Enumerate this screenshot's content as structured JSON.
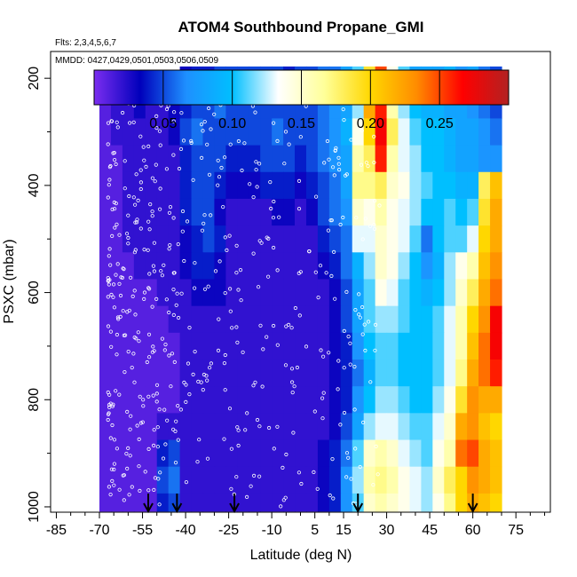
{
  "chart_data": {
    "type": "heatmap",
    "title": "ATOM4 Southbound Propane_GMI",
    "subtitle_flights": "Flts: 2,3,4,5,6,7",
    "subtitle_dates": "MMDD: 0427,0429,0501,0503,0506,0509",
    "xlabel": "Latitude (deg N)",
    "ylabel": "PSXC (mbar)",
    "x_ticks": [
      -85,
      -70,
      -55,
      -40,
      -25,
      -10,
      5,
      15,
      30,
      45,
      60,
      75
    ],
    "x_tick_labels": [
      "-85",
      "-70",
      "-55",
      "-40",
      "-25",
      "-10",
      "5",
      "15",
      "30",
      "45",
      "60",
      "75"
    ],
    "xlim": [
      -87,
      87
    ],
    "y_ticks": [
      200,
      400,
      600,
      800,
      1000
    ],
    "y_tick_labels": [
      "200",
      "400",
      "600",
      "800",
      "1000"
    ],
    "ylim": [
      1010,
      150
    ],
    "colorbar": {
      "range": [
        0,
        0.3
      ],
      "ticks": [
        0.05,
        0.1,
        0.15,
        0.2,
        0.25
      ],
      "tick_labels": [
        "0.05",
        "0.10",
        "0.15",
        "0.20",
        "0.25"
      ],
      "colors": [
        "#7b2df0",
        "#0000bb",
        "#1e90ff",
        "#00bfff",
        "#ffffff",
        "#ffff99",
        "#ffd700",
        "#ff8c00",
        "#ff0000",
        "#b22222"
      ]
    },
    "flight_profile_latitudes": [
      -53,
      -43,
      -23,
      20,
      60
    ],
    "lat_grid": [
      -68,
      -64,
      -60,
      -56,
      -52,
      -48,
      -44,
      -40,
      -36,
      -32,
      -28,
      -24,
      -20,
      -16,
      -12,
      -8,
      -4,
      0,
      4,
      8,
      12,
      16,
      20,
      24,
      28,
      32,
      36,
      40,
      44,
      48,
      52,
      56,
      60,
      64,
      68
    ],
    "pressure_levels": [
      200,
      250,
      300,
      350,
      400,
      450,
      500,
      550,
      600,
      650,
      700,
      750,
      800,
      850,
      900,
      950,
      1000
    ],
    "values": [
      [
        0.01,
        0.01,
        0.02,
        0.03,
        0.02,
        0.02,
        0.02,
        0.03,
        0.04,
        0.04,
        0.05,
        0.05,
        0.05,
        0.05,
        0.05,
        0.05,
        0.04,
        0.05,
        0.05,
        0.06,
        0.06,
        0.08,
        0.11,
        0.19,
        0.25,
        0.14,
        0.11,
        0.08,
        0.08,
        0.08,
        0.09,
        0.07,
        0.08,
        0.06,
        0.05
      ],
      [
        0.01,
        0.02,
        0.02,
        0.03,
        0.02,
        0.02,
        0.03,
        0.04,
        0.05,
        0.05,
        0.06,
        0.05,
        0.05,
        0.05,
        0.05,
        0.05,
        0.05,
        0.05,
        0.05,
        0.06,
        0.07,
        0.08,
        0.12,
        0.22,
        0.26,
        0.16,
        0.12,
        0.1,
        0.09,
        0.09,
        0.08,
        0.08,
        0.07,
        0.06,
        0.05
      ],
      [
        0.01,
        0.02,
        0.02,
        0.02,
        0.02,
        0.02,
        0.03,
        0.05,
        0.06,
        0.05,
        0.05,
        0.05,
        0.05,
        0.05,
        0.05,
        0.06,
        0.05,
        0.05,
        0.05,
        0.06,
        0.07,
        0.09,
        0.14,
        0.2,
        0.27,
        0.18,
        0.13,
        0.11,
        0.1,
        0.1,
        0.09,
        0.08,
        0.08,
        0.07,
        0.06
      ],
      [
        0.01,
        0.01,
        0.02,
        0.02,
        0.02,
        0.02,
        0.02,
        0.04,
        0.05,
        0.05,
        0.05,
        0.04,
        0.04,
        0.04,
        0.05,
        0.05,
        0.05,
        0.04,
        0.05,
        0.06,
        0.07,
        0.08,
        0.16,
        0.18,
        0.26,
        0.16,
        0.13,
        0.12,
        0.1,
        0.1,
        0.09,
        0.08,
        0.08,
        0.07,
        0.07
      ],
      [
        0.01,
        0.01,
        0.02,
        0.02,
        0.02,
        0.02,
        0.02,
        0.04,
        0.05,
        0.05,
        0.04,
        0.03,
        0.03,
        0.03,
        0.04,
        0.04,
        0.04,
        0.03,
        0.04,
        0.05,
        0.06,
        0.08,
        0.17,
        0.17,
        0.18,
        0.15,
        0.14,
        0.12,
        0.11,
        0.1,
        0.1,
        0.09,
        0.09,
        0.18,
        0.21
      ],
      [
        0.01,
        0.01,
        0.02,
        0.02,
        0.02,
        0.02,
        0.02,
        0.04,
        0.05,
        0.05,
        0.03,
        0.02,
        0.02,
        0.02,
        0.02,
        0.03,
        0.03,
        0.02,
        0.03,
        0.05,
        0.06,
        0.07,
        0.15,
        0.14,
        0.16,
        0.14,
        0.13,
        0.12,
        0.1,
        0.1,
        0.11,
        0.1,
        0.11,
        0.19,
        0.22
      ],
      [
        0.01,
        0.01,
        0.02,
        0.02,
        0.02,
        0.02,
        0.02,
        0.03,
        0.04,
        0.05,
        0.04,
        0.02,
        0.02,
        0.02,
        0.02,
        0.02,
        0.02,
        0.02,
        0.02,
        0.04,
        0.05,
        0.06,
        0.13,
        0.13,
        0.15,
        0.14,
        0.13,
        0.11,
        0.06,
        0.1,
        0.11,
        0.11,
        0.13,
        0.2,
        0.22
      ],
      [
        0.01,
        0.01,
        0.01,
        0.02,
        0.02,
        0.02,
        0.02,
        0.03,
        0.04,
        0.04,
        0.03,
        0.02,
        0.02,
        0.02,
        0.02,
        0.02,
        0.02,
        0.02,
        0.02,
        0.03,
        0.04,
        0.06,
        0.09,
        0.12,
        0.15,
        0.14,
        0.12,
        0.1,
        0.07,
        0.09,
        0.12,
        0.14,
        0.16,
        0.21,
        0.23
      ],
      [
        0.01,
        0.01,
        0.01,
        0.01,
        0.01,
        0.02,
        0.02,
        0.02,
        0.03,
        0.03,
        0.03,
        0.02,
        0.02,
        0.02,
        0.02,
        0.02,
        0.02,
        0.02,
        0.02,
        0.02,
        0.03,
        0.05,
        0.08,
        0.11,
        0.14,
        0.13,
        0.11,
        0.1,
        0.09,
        0.1,
        0.12,
        0.15,
        0.18,
        0.22,
        0.24
      ],
      [
        0.01,
        0.01,
        0.01,
        0.01,
        0.01,
        0.01,
        0.02,
        0.02,
        0.02,
        0.02,
        0.02,
        0.02,
        0.02,
        0.02,
        0.02,
        0.02,
        0.02,
        0.02,
        0.02,
        0.02,
        0.03,
        0.05,
        0.08,
        0.11,
        0.12,
        0.12,
        0.11,
        0.1,
        0.1,
        0.11,
        0.13,
        0.16,
        0.2,
        0.23,
        0.27
      ],
      [
        0.01,
        0.01,
        0.01,
        0.01,
        0.01,
        0.01,
        0.01,
        0.02,
        0.02,
        0.02,
        0.02,
        0.02,
        0.02,
        0.02,
        0.02,
        0.02,
        0.02,
        0.02,
        0.02,
        0.02,
        0.03,
        0.04,
        0.07,
        0.1,
        0.11,
        0.11,
        0.1,
        0.1,
        0.1,
        0.11,
        0.13,
        0.16,
        0.21,
        0.24,
        0.27
      ],
      [
        0.01,
        0.01,
        0.01,
        0.01,
        0.01,
        0.01,
        0.01,
        0.02,
        0.02,
        0.02,
        0.02,
        0.02,
        0.02,
        0.02,
        0.02,
        0.02,
        0.02,
        0.02,
        0.02,
        0.02,
        0.03,
        0.04,
        0.06,
        0.09,
        0.11,
        0.11,
        0.1,
        0.1,
        0.1,
        0.11,
        0.13,
        0.17,
        0.22,
        0.24,
        0.26
      ],
      [
        0.01,
        0.01,
        0.01,
        0.01,
        0.01,
        0.01,
        0.01,
        0.02,
        0.02,
        0.02,
        0.02,
        0.02,
        0.02,
        0.02,
        0.02,
        0.02,
        0.02,
        0.02,
        0.02,
        0.02,
        0.03,
        0.04,
        0.07,
        0.1,
        0.12,
        0.12,
        0.11,
        0.1,
        0.1,
        0.12,
        0.14,
        0.19,
        0.23,
        0.22,
        0.22
      ],
      [
        0.01,
        0.01,
        0.01,
        0.01,
        0.01,
        0.02,
        0.02,
        0.02,
        0.02,
        0.02,
        0.02,
        0.02,
        0.02,
        0.02,
        0.02,
        0.02,
        0.02,
        0.02,
        0.02,
        0.02,
        0.03,
        0.05,
        0.08,
        0.12,
        0.13,
        0.13,
        0.12,
        0.11,
        0.11,
        0.13,
        0.15,
        0.22,
        0.23,
        0.21,
        0.2
      ],
      [
        0.01,
        0.01,
        0.01,
        0.01,
        0.01,
        0.04,
        0.05,
        0.02,
        0.02,
        0.02,
        0.02,
        0.02,
        0.02,
        0.02,
        0.02,
        0.02,
        0.02,
        0.02,
        0.02,
        0.03,
        0.04,
        0.06,
        0.11,
        0.15,
        0.16,
        0.15,
        0.13,
        0.12,
        0.11,
        0.14,
        0.16,
        0.24,
        0.25,
        0.22,
        0.21
      ],
      [
        0.01,
        0.01,
        0.01,
        0.01,
        0.01,
        0.05,
        0.06,
        0.02,
        0.02,
        0.02,
        0.02,
        0.02,
        0.02,
        0.02,
        0.02,
        0.02,
        0.02,
        0.02,
        0.02,
        0.03,
        0.04,
        0.07,
        0.12,
        0.16,
        0.17,
        0.16,
        0.14,
        0.13,
        0.12,
        0.15,
        0.18,
        0.2,
        0.23,
        0.22,
        0.21
      ],
      [
        0.01,
        0.01,
        0.01,
        0.01,
        0.01,
        0.04,
        0.05,
        0.02,
        0.02,
        0.02,
        0.02,
        0.02,
        0.02,
        0.02,
        0.02,
        0.02,
        0.02,
        0.02,
        0.02,
        0.03,
        0.04,
        0.07,
        0.11,
        0.15,
        0.16,
        0.15,
        0.14,
        0.13,
        0.12,
        0.14,
        0.17,
        0.2,
        0.22,
        0.21,
        0.2
      ]
    ]
  }
}
